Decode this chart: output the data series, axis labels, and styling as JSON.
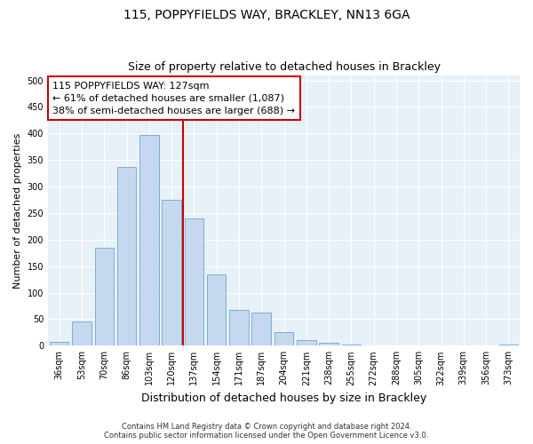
{
  "title1": "115, POPPYFIELDS WAY, BRACKLEY, NN13 6GA",
  "title2": "Size of property relative to detached houses in Brackley",
  "xlabel": "Distribution of detached houses by size in Brackley",
  "ylabel": "Number of detached properties",
  "categories": [
    "36sqm",
    "53sqm",
    "70sqm",
    "86sqm",
    "103sqm",
    "120sqm",
    "137sqm",
    "154sqm",
    "171sqm",
    "187sqm",
    "204sqm",
    "221sqm",
    "238sqm",
    "255sqm",
    "272sqm",
    "288sqm",
    "305sqm",
    "322sqm",
    "339sqm",
    "356sqm",
    "373sqm"
  ],
  "values": [
    8,
    46,
    185,
    337,
    397,
    275,
    240,
    135,
    68,
    62,
    25,
    11,
    5,
    2,
    1,
    1,
    0,
    0,
    0,
    0,
    3
  ],
  "bar_color": "#c5d8f0",
  "bar_edge_color": "#7bafd4",
  "vline_x": 5.5,
  "vline_color": "#cc0000",
  "annotation_text": "115 POPPYFIELDS WAY: 127sqm\n← 61% of detached houses are smaller (1,087)\n38% of semi-detached houses are larger (688) →",
  "annotation_box_color": "#ffffff",
  "annotation_box_edge": "#cc0000",
  "ylim": [
    0,
    510
  ],
  "yticks": [
    0,
    50,
    100,
    150,
    200,
    250,
    300,
    350,
    400,
    450,
    500
  ],
  "footnote1": "Contains HM Land Registry data © Crown copyright and database right 2024.",
  "footnote2": "Contains public sector information licensed under the Open Government Licence v3.0.",
  "plot_bg_color": "#e8f0f8",
  "grid_color": "#ffffff",
  "title1_fontsize": 10,
  "title2_fontsize": 9,
  "tick_fontsize": 7,
  "ylabel_fontsize": 8,
  "xlabel_fontsize": 9,
  "footnote_fontsize": 6,
  "annotation_fontsize": 8
}
